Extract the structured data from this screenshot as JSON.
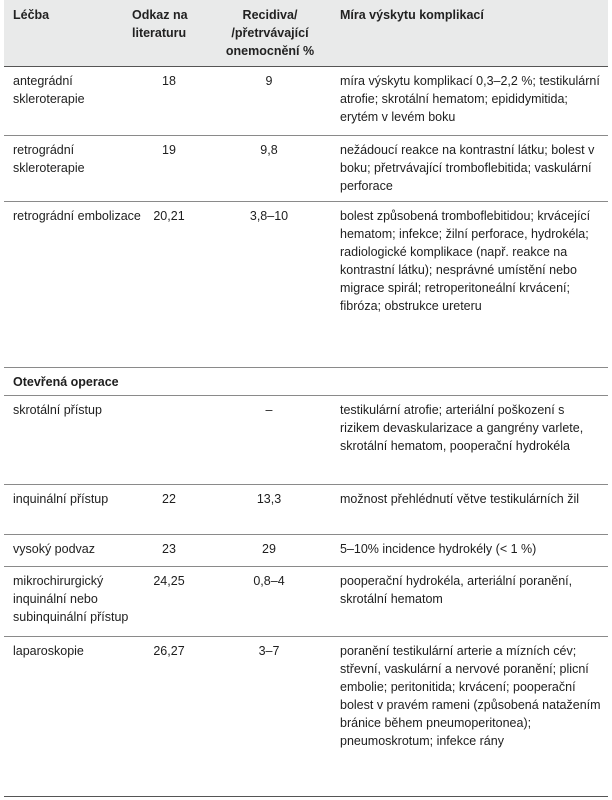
{
  "headers": {
    "treatment": "Léčba",
    "reference": "Odkaz na literaturu",
    "recurrence": "Recidiva/ /přetrvávající onemocnění %",
    "complications": "Míra výskytu komplikací"
  },
  "rows": [
    {
      "treatment": "antegrádní skleroterapie",
      "reference": "18",
      "recurrence": "9",
      "complications": "míra výskytu komplikací 0,3–2,2 %; testikulární atrofie; skrotální hematom; epididymitida; erytém v levém boku"
    },
    {
      "treatment": "retrográdní skleroterapie",
      "reference": "19",
      "recurrence": "9,8",
      "complications": "nežádoucí reakce na kontrastní látku; bolest v boku; přetrvávající tromboflebitida; vaskulární perforace"
    },
    {
      "treatment": "retrográdní embolizace",
      "reference": "20,21",
      "recurrence": "3,8–10",
      "complications": "bolest způsobená tromboflebitidou; krvácející hematom; infekce; žilní perforace, hydrokéla; radiologické komplikace (např. reakce na kontrastní látku); nesprávné umístění nebo migrace spirál; retroperitoneální krvácení; fibróza; obstrukce ureteru"
    }
  ],
  "section": "Otevřená operace",
  "rows2": [
    {
      "treatment": "skrotální přístup",
      "reference": "",
      "recurrence": "–",
      "complications": "testikulární atrofie; arteriální poškození s rizikem devaskularizace a gangrény varlete, skrotální hematom, pooperační hydrokéla"
    },
    {
      "treatment": "inquinální přístup",
      "reference": "22",
      "recurrence": "13,3",
      "complications": "možnost přehlédnutí větve testikulárních žil"
    },
    {
      "treatment": "vysoký podvaz",
      "reference": "23",
      "recurrence": "29",
      "complications": "5–10% incidence hydrokély (< 1 %)"
    },
    {
      "treatment": "mikrochirurgický inquinální nebo subinquinální přístup",
      "reference": "24,25",
      "recurrence": "0,8–4",
      "complications": "pooperační hydrokéla, arteriální poranění, skrotální hematom"
    },
    {
      "treatment": "laparoskopie",
      "reference": "26,27",
      "recurrence": "3–7",
      "complications": "poranění testikulární arterie a mízních cév; střevní, vaskulární a nervové poranění; plicní embolie; peritonitida; krvácení; pooperační bolest v pravém rameni (způsobená natažením bránice během pneumoperitonea); pneumoskrotum; infekce rány"
    }
  ]
}
